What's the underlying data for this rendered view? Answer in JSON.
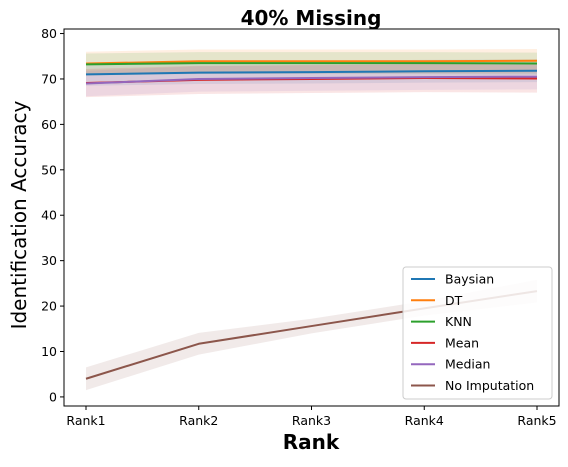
{
  "chart_data": {
    "type": "line",
    "title": "40% Missing",
    "xlabel": "Rank",
    "ylabel": "Identification Accuracy",
    "categories": [
      "Rank1",
      "Rank2",
      "Rank3",
      "Rank4",
      "Rank5"
    ],
    "yticks": [
      0,
      10,
      20,
      30,
      40,
      50,
      60,
      70,
      80
    ],
    "ylim": [
      -2,
      81
    ],
    "grid": false,
    "legend_position": "lower right",
    "series": [
      {
        "name": "Baysian",
        "color": "#1f77b4",
        "values": [
          71.0,
          71.4,
          71.5,
          71.7,
          71.8
        ],
        "band": [
          [
            68.5,
            73.5
          ],
          [
            68.9,
            73.9
          ],
          [
            69.0,
            74.0
          ],
          [
            69.2,
            74.2
          ],
          [
            69.3,
            74.3
          ]
        ]
      },
      {
        "name": "DT",
        "color": "#ff7f0e",
        "values": [
          73.4,
          73.9,
          73.9,
          73.9,
          74.0
        ],
        "band": [
          [
            70.8,
            76.0
          ],
          [
            71.3,
            76.5
          ],
          [
            71.3,
            76.5
          ],
          [
            71.3,
            76.5
          ],
          [
            71.4,
            76.6
          ]
        ]
      },
      {
        "name": "KNN",
        "color": "#2ca02c",
        "values": [
          73.2,
          73.5,
          73.5,
          73.5,
          73.4
        ],
        "band": [
          [
            70.8,
            75.6
          ],
          [
            71.1,
            75.9
          ],
          [
            71.1,
            75.9
          ],
          [
            71.1,
            75.9
          ],
          [
            71.0,
            75.8
          ]
        ]
      },
      {
        "name": "Mean",
        "color": "#d62728",
        "values": [
          69.1,
          69.8,
          70.0,
          70.2,
          70.1
        ],
        "band": [
          [
            66.0,
            72.2
          ],
          [
            66.7,
            72.9
          ],
          [
            66.9,
            73.1
          ],
          [
            67.1,
            73.3
          ],
          [
            67.0,
            73.2
          ]
        ]
      },
      {
        "name": "Median",
        "color": "#9467bd",
        "values": [
          69.0,
          70.0,
          70.2,
          70.4,
          70.5
        ],
        "band": [
          [
            66.2,
            71.8
          ],
          [
            67.2,
            72.8
          ],
          [
            67.4,
            73.0
          ],
          [
            67.6,
            73.2
          ],
          [
            67.7,
            73.3
          ]
        ]
      },
      {
        "name": "No Imputation",
        "color": "#8c564b",
        "values": [
          4.0,
          11.7,
          15.6,
          19.5,
          23.3
        ],
        "band": [
          [
            1.5,
            6.5
          ],
          [
            9.3,
            14.1
          ],
          [
            14.0,
            17.2
          ],
          [
            17.9,
            21.1
          ],
          [
            20.8,
            25.8
          ]
        ]
      }
    ]
  }
}
